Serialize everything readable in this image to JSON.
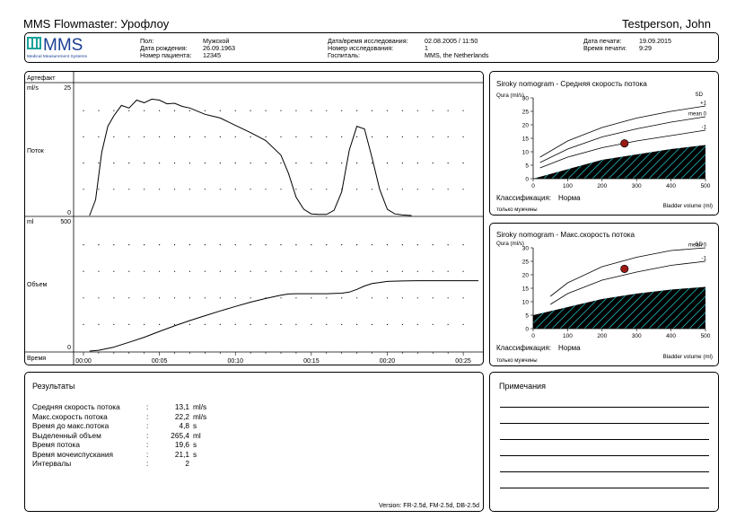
{
  "app": {
    "title": "MMS Flowmaster: Урофлоу",
    "patient_name": "Testperson, John"
  },
  "logo": {
    "text": "MMS",
    "subtext": "Medical Measurement Systems"
  },
  "header": {
    "sex_label": "Пол:",
    "sex_value": "Мужской",
    "dob_label": "Дата рождения:",
    "dob_value": "26.09.1963",
    "patient_no_label": "Номер пациента:",
    "patient_no_value": "12345",
    "study_dt_label": "Дата/время исследования:",
    "study_dt_value": "02.08.2005 / 11:50",
    "study_no_label": "Номер исследования:",
    "study_no_value": "1",
    "hospital_label": "Госпиталь:",
    "hospital_value": "MMS, the Netherlands",
    "print_date_label": "Дата печати:",
    "print_date_value": "19.09.2015",
    "print_time_label": "Время печати:",
    "print_time_value": "9:29"
  },
  "graph": {
    "artifact_label": "Артефакт",
    "flow": {
      "unit": "ml/s",
      "max_label": "25",
      "zero_label": "0",
      "name": "Поток",
      "ylim": [
        0,
        25
      ]
    },
    "volume": {
      "unit": "ml",
      "max_label": "500",
      "zero_label": "0",
      "name": "Объем",
      "ylim": [
        0,
        500
      ]
    },
    "time_label": "Время",
    "time_ticks": [
      "00:00",
      "00:05",
      "00:10",
      "00:15",
      "00:20",
      "00:25"
    ]
  },
  "chart_data": [
    {
      "type": "line",
      "title": "",
      "xlabel": "Время",
      "ylabel": "ml/s",
      "xlim": [
        0,
        26
      ],
      "ylim": [
        0,
        25
      ],
      "series": [
        {
          "name": "Поток",
          "x": [
            0.4,
            0.8,
            1.2,
            1.6,
            2.0,
            2.5,
            3.0,
            3.5,
            4.0,
            4.5,
            5.0,
            5.5,
            6.0,
            6.5,
            7.0,
            8.0,
            9.0,
            10.0,
            11.0,
            12.0,
            13.0,
            13.5,
            14.0,
            14.5,
            15.0,
            15.5,
            16.0,
            16.5,
            17.0,
            17.5,
            18.0,
            18.5,
            19.0,
            19.5,
            20.0,
            20.5,
            21.0,
            21.6
          ],
          "y": [
            0,
            3,
            12,
            17,
            19,
            21,
            20.5,
            22,
            21.5,
            22.2,
            22,
            21.3,
            21.4,
            20.8,
            20.5,
            19.3,
            18.6,
            17.2,
            15.8,
            14.3,
            11.5,
            8.0,
            3.5,
            1.2,
            0.3,
            0.2,
            0.2,
            1.0,
            4.5,
            12.5,
            17.0,
            16.5,
            11.0,
            5.0,
            1.2,
            0.3,
            0.1,
            0
          ]
        }
      ]
    },
    {
      "type": "line",
      "title": "",
      "xlabel": "Время",
      "ylabel": "ml",
      "xlim": [
        0,
        26
      ],
      "ylim": [
        0,
        500
      ],
      "series": [
        {
          "name": "Объем",
          "x": [
            0.4,
            1,
            2,
            3,
            4,
            5,
            6,
            7,
            8,
            9,
            10,
            11,
            12,
            13,
            13.5,
            14,
            15,
            16,
            17,
            17.5,
            18,
            18.5,
            19,
            19.5,
            20,
            21,
            22,
            23,
            24,
            25,
            26
          ],
          "y": [
            0,
            3,
            15,
            33,
            52,
            74,
            95,
            115,
            133,
            151,
            168,
            184,
            198,
            210,
            215,
            216,
            216,
            216,
            218,
            222,
            232,
            245,
            254,
            258,
            262,
            264,
            265,
            265,
            265,
            265,
            265
          ]
        }
      ]
    },
    {
      "type": "line",
      "title": "Siroky nomogram - Средняя скорость потока",
      "xlabel": "Bladder volume (ml)",
      "ylabel": "Qura (ml/s)",
      "xlim": [
        0,
        500
      ],
      "ylim": [
        0,
        30
      ],
      "x_ticks": [
        0,
        100,
        200,
        300,
        400,
        500
      ],
      "y_ticks": [
        0,
        5,
        10,
        15,
        20,
        25,
        30
      ],
      "series": [
        {
          "name": "+1",
          "x": [
            20,
            100,
            200,
            300,
            400,
            500
          ],
          "y": [
            8,
            14,
            19,
            22.5,
            25,
            27
          ]
        },
        {
          "name": "mean 0",
          "x": [
            20,
            100,
            200,
            300,
            400,
            500
          ],
          "y": [
            6,
            11,
            15.5,
            18.5,
            21,
            23
          ]
        },
        {
          "name": "-1",
          "x": [
            20,
            100,
            200,
            300,
            400,
            500
          ],
          "y": [
            4,
            8,
            11.5,
            14,
            16,
            18
          ]
        },
        {
          "name": "",
          "x": [
            0,
            100,
            200,
            300,
            400,
            500
          ],
          "y": [
            0,
            3.5,
            7,
            9,
            11,
            12.5
          ]
        },
        {
          "name": "",
          "type": "scatter",
          "x": [
            265
          ],
          "y": [
            13.1
          ]
        }
      ],
      "sd_label": "SD",
      "classification_label": "Классификация:",
      "classification_value": "Норма",
      "note": "только мужчины"
    },
    {
      "type": "line",
      "title": "Siroky nomogram - Макс.скорость потока",
      "xlabel": "Bladder volume (ml)",
      "ylabel": "Qura (ml/s)",
      "xlim": [
        0,
        500
      ],
      "ylim": [
        0,
        30
      ],
      "x_ticks": [
        0,
        100,
        200,
        300,
        400,
        500
      ],
      "y_ticks": [
        0,
        5,
        10,
        15,
        20,
        25,
        30
      ],
      "series": [
        {
          "name": "mean 0",
          "x": [
            50,
            100,
            200,
            300,
            400,
            500
          ],
          "y": [
            12,
            17,
            23,
            26.5,
            29,
            30
          ]
        },
        {
          "name": "-1",
          "x": [
            50,
            100,
            200,
            300,
            400,
            500
          ],
          "y": [
            9,
            13,
            18,
            21,
            23.5,
            25
          ]
        },
        {
          "name": "",
          "x": [
            0,
            100,
            200,
            300,
            400,
            500
          ],
          "y": [
            5,
            8,
            11,
            13,
            14.5,
            15.5
          ]
        },
        {
          "name": "",
          "type": "scatter",
          "x": [
            265
          ],
          "y": [
            22.2
          ]
        }
      ],
      "sd_label": "SD",
      "classification_label": "Классификация:",
      "classification_value": "Норма",
      "note": "только мужчины"
    }
  ],
  "results": {
    "title": "Результаты",
    "rows": [
      {
        "label": "Средняя скорость потока",
        "sep": ":",
        "value": "13,1",
        "unit": "ml/s"
      },
      {
        "label": "Макс.скорость потока",
        "sep": ":",
        "value": "22,2",
        "unit": "ml/s"
      },
      {
        "label": "Время до макс.потока",
        "sep": ":",
        "value": "4,8",
        "unit": "s"
      },
      {
        "label": "Выделенный объем",
        "sep": ":",
        "value": "265,4",
        "unit": "ml"
      },
      {
        "label": "Время потока",
        "sep": ":",
        "value": "19,6",
        "unit": "s"
      },
      {
        "label": "Время мочеиспускания",
        "sep": ":",
        "value": "21,1",
        "unit": "s"
      },
      {
        "label": "Интервалы",
        "sep": ":",
        "value": "2",
        "unit": ""
      }
    ],
    "version": "Version: FR-2.5d, FM-2.5d, DB-2.5d"
  },
  "notes": {
    "title": "Примечания"
  },
  "colors": {
    "logo_blue": "#1a3f95",
    "logo_teal": "#17a39a",
    "hatch_teal": "#1fa4a8",
    "marker_red": "#9b1a14"
  }
}
